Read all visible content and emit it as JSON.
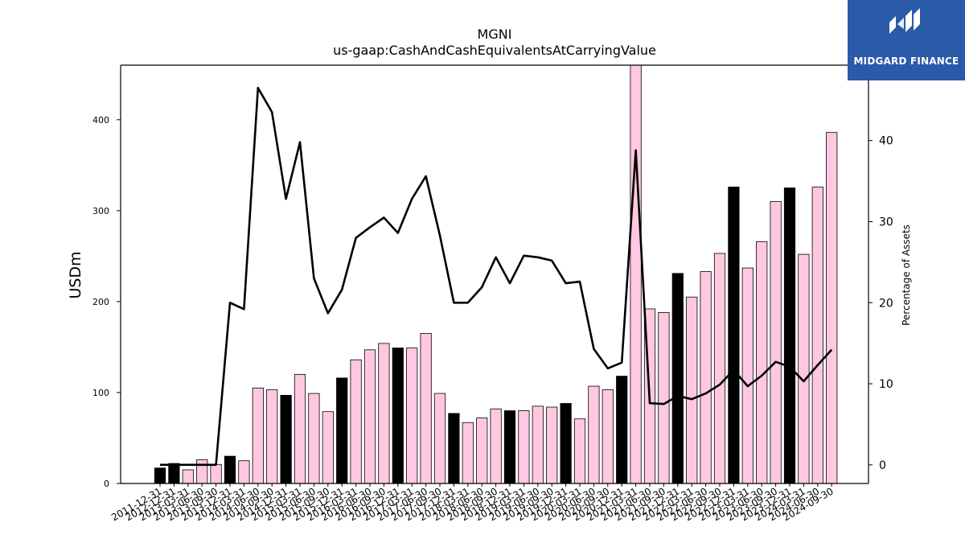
{
  "brand": {
    "name": "MIDGARD FINANCE",
    "accent": "#2a5aa8"
  },
  "chart_data": {
    "type": "bar",
    "title": "MGNI",
    "subtitle": "us-gaap:CashAndCashEquivalentsAtCarryingValue",
    "ylabel": "USDm",
    "y2label": "Percentage of Assets",
    "ylim": [
      0,
      460
    ],
    "y2lim": [
      -2.3,
      49.3
    ],
    "yticks": [
      0,
      100,
      200,
      300,
      400
    ],
    "y2ticks": [
      0,
      10,
      20,
      30,
      40
    ],
    "grid": false,
    "colors": {
      "q4_bar": "#000000",
      "other_bar": "#ffc8e0",
      "line": "#000000"
    },
    "categories": [
      "2011-12-31",
      "2012-12-31",
      "2013-03-31",
      "2013-06-30",
      "2013-09-30",
      "2013-12-31",
      "2014-03-31",
      "2014-06-30",
      "2014-09-30",
      "2014-12-31",
      "2015-03-31",
      "2015-06-30",
      "2015-09-30",
      "2015-12-31",
      "2016-03-31",
      "2016-06-30",
      "2016-09-30",
      "2016-12-31",
      "2017-03-31",
      "2017-06-30",
      "2017-09-30",
      "2017-12-31",
      "2018-03-31",
      "2018-06-30",
      "2018-09-30",
      "2018-12-31",
      "2019-03-31",
      "2019-06-30",
      "2019-09-30",
      "2019-12-31",
      "2020-03-31",
      "2020-06-30",
      "2020-09-30",
      "2020-12-31",
      "2021-03-31",
      "2021-06-30",
      "2021-09-30",
      "2021-12-31",
      "2022-03-31",
      "2022-06-30",
      "2022-09-30",
      "2022-12-31",
      "2023-03-31",
      "2023-06-30",
      "2023-09-30",
      "2023-12-31",
      "2024-03-31",
      "2024-06-30",
      "2024-09-30"
    ],
    "series": [
      {
        "kind": "bar",
        "values": [
          17,
          22,
          15,
          26,
          21,
          30,
          25,
          105,
          103,
          97,
          120,
          99,
          79,
          116,
          136,
          147,
          154,
          149,
          149,
          165,
          99,
          77,
          67,
          72,
          82,
          80,
          80,
          85,
          84,
          88,
          71,
          107,
          103,
          118,
          460,
          192,
          188,
          231,
          205,
          233,
          253,
          326,
          237,
          266,
          310,
          325,
          252,
          326,
          386
        ]
      },
      {
        "kind": "line",
        "axis": "right",
        "values": [
          0,
          0,
          0,
          0,
          0,
          20,
          19.2,
          46.5,
          43.5,
          32.8,
          39.8,
          23,
          18.7,
          21.6,
          28,
          29.3,
          30.5,
          28.6,
          32.8,
          35.6,
          28.3,
          20,
          20,
          21.9,
          25.6,
          22.4,
          25.8,
          25.6,
          25.2,
          22.4,
          22.6,
          14.3,
          11.9,
          12.6,
          38.8,
          7.6,
          7.5,
          8.5,
          8.1,
          8.8,
          9.9,
          11.7,
          9.7,
          11,
          12.7,
          12.1,
          10.3,
          12.3,
          14.2
        ]
      }
    ]
  }
}
